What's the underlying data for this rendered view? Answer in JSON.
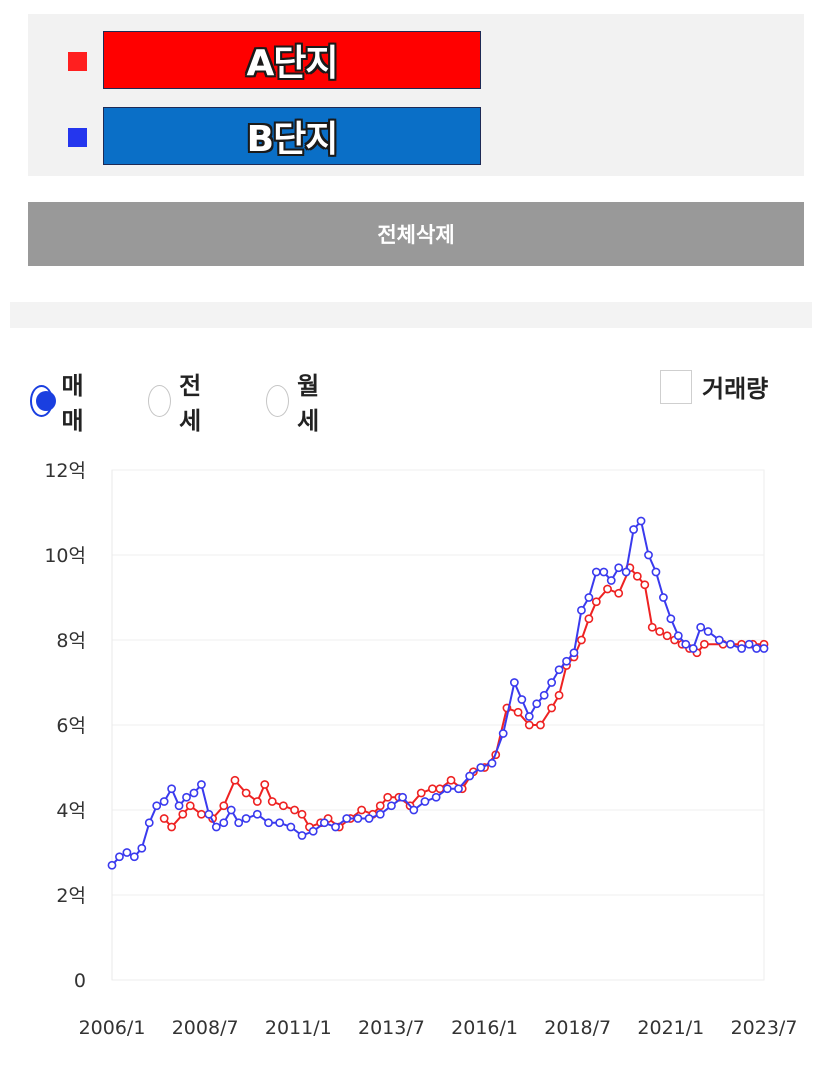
{
  "compare": {
    "items": [
      {
        "label": "A단지",
        "marker_color": "#ff1f1f",
        "button_color": "#ff0000"
      },
      {
        "label": "B단지",
        "marker_color": "#2436ee",
        "button_color": "#0a6fc7"
      }
    ],
    "delete_all_label": "전체삭제"
  },
  "trade_types": {
    "options": [
      "매매",
      "전세",
      "월세"
    ],
    "selected": "매매"
  },
  "volume_toggle": {
    "label": "거래량",
    "checked": false
  },
  "chart_data": {
    "type": "line",
    "title": "",
    "xlabel": "",
    "ylabel": "",
    "x_ticks": [
      "2006/1",
      "2008/7",
      "2011/1",
      "2013/7",
      "2016/1",
      "2018/7",
      "2021/1",
      "2023/7"
    ],
    "y_ticks": [
      "0",
      "2억",
      "4억",
      "6억",
      "8억",
      "10억",
      "12억"
    ],
    "ylim": [
      0,
      12
    ],
    "xlim": [
      2006.0,
      2023.5
    ],
    "grid": "horizontal",
    "series": [
      {
        "color": "#ee2222",
        "x": [
          2007.4,
          2007.6,
          2007.9,
          2008.1,
          2008.4,
          2008.7,
          2009.0,
          2009.3,
          2009.6,
          2009.9,
          2010.1,
          2010.3,
          2010.6,
          2010.9,
          2011.1,
          2011.3,
          2011.6,
          2011.8,
          2012.1,
          2012.4,
          2012.7,
          2013.0,
          2013.2,
          2013.4,
          2013.7,
          2014.0,
          2014.3,
          2014.6,
          2014.8,
          2015.1,
          2015.4,
          2015.7,
          2016.0,
          2016.3,
          2016.6,
          2016.9,
          2017.2,
          2017.5,
          2017.8,
          2018.0,
          2018.2,
          2018.4,
          2018.6,
          2018.8,
          2019.0,
          2019.3,
          2019.6,
          2019.9,
          2020.1,
          2020.3,
          2020.5,
          2020.7,
          2020.9,
          2021.1,
          2021.3,
          2021.5,
          2021.7,
          2021.9,
          2022.4,
          2022.9,
          2023.2,
          2023.5
        ],
        "y": [
          3.8,
          3.6,
          3.9,
          4.1,
          3.9,
          3.8,
          4.1,
          4.7,
          4.4,
          4.2,
          4.6,
          4.2,
          4.1,
          4.0,
          3.9,
          3.6,
          3.7,
          3.8,
          3.6,
          3.8,
          4.0,
          3.9,
          4.1,
          4.3,
          4.3,
          4.1,
          4.4,
          4.5,
          4.5,
          4.7,
          4.5,
          4.9,
          5.0,
          5.3,
          6.4,
          6.3,
          6.0,
          6.0,
          6.4,
          6.7,
          7.4,
          7.6,
          8.0,
          8.5,
          8.9,
          9.2,
          9.1,
          9.7,
          9.5,
          9.3,
          8.3,
          8.2,
          8.1,
          8.0,
          7.9,
          7.8,
          7.7,
          7.9,
          7.9,
          7.9,
          7.9,
          7.9
        ]
      },
      {
        "color": "#3a3aee",
        "x": [
          2006.0,
          2006.2,
          2006.4,
          2006.6,
          2006.8,
          2007.0,
          2007.2,
          2007.4,
          2007.6,
          2007.8,
          2008.0,
          2008.2,
          2008.4,
          2008.6,
          2008.8,
          2009.0,
          2009.2,
          2009.4,
          2009.6,
          2009.9,
          2010.2,
          2010.5,
          2010.8,
          2011.1,
          2011.4,
          2011.7,
          2012.0,
          2012.3,
          2012.6,
          2012.9,
          2013.2,
          2013.5,
          2013.8,
          2014.1,
          2014.4,
          2014.7,
          2015.0,
          2015.3,
          2015.6,
          2015.9,
          2016.2,
          2016.5,
          2016.8,
          2017.0,
          2017.2,
          2017.4,
          2017.6,
          2017.8,
          2018.0,
          2018.2,
          2018.4,
          2018.6,
          2018.8,
          2019.0,
          2019.2,
          2019.4,
          2019.6,
          2019.8,
          2020.0,
          2020.2,
          2020.4,
          2020.6,
          2020.8,
          2021.0,
          2021.2,
          2021.4,
          2021.6,
          2021.8,
          2022.0,
          2022.3,
          2022.6,
          2022.9,
          2023.1,
          2023.3,
          2023.5
        ],
        "y": [
          2.7,
          2.9,
          3.0,
          2.9,
          3.1,
          3.7,
          4.1,
          4.2,
          4.5,
          4.1,
          4.3,
          4.4,
          4.6,
          3.9,
          3.6,
          3.7,
          4.0,
          3.7,
          3.8,
          3.9,
          3.7,
          3.7,
          3.6,
          3.4,
          3.5,
          3.7,
          3.6,
          3.8,
          3.8,
          3.8,
          3.9,
          4.1,
          4.3,
          4.0,
          4.2,
          4.3,
          4.5,
          4.5,
          4.8,
          5.0,
          5.1,
          5.8,
          7.0,
          6.6,
          6.2,
          6.5,
          6.7,
          7.0,
          7.3,
          7.5,
          7.7,
          8.7,
          9.0,
          9.6,
          9.6,
          9.4,
          9.7,
          9.6,
          10.6,
          10.8,
          10.0,
          9.6,
          9.0,
          8.5,
          8.1,
          7.9,
          7.8,
          8.3,
          8.2,
          8.0,
          7.9,
          7.8,
          7.9,
          7.8,
          7.8
        ]
      }
    ]
  }
}
